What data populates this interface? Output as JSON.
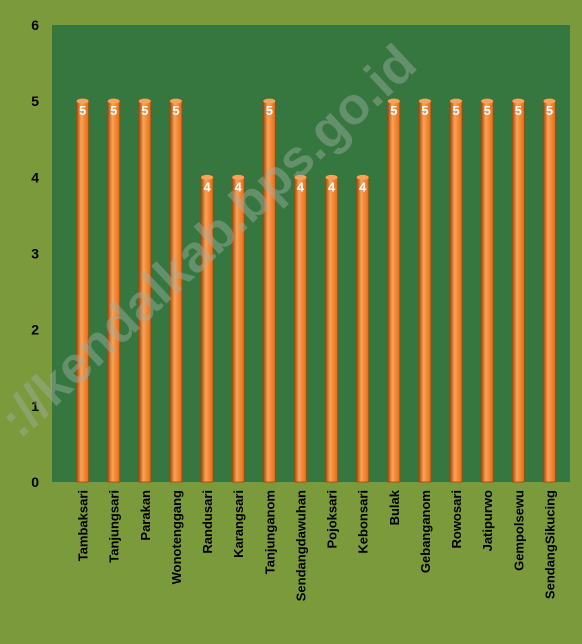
{
  "colors": {
    "page_background": "#7a9a3c",
    "plot_background": "#35773f",
    "axis_label": "#000000",
    "bar_fill": "#e66a12",
    "bar_highlight": "#f9a35a",
    "bar_shadow": "#a84807",
    "data_label": "#ffffff",
    "watermark": "#9fb0a5"
  },
  "watermark": {
    "text": "://kendalkab.bps.go.id"
  },
  "chart_data": {
    "type": "bar",
    "categories": [
      "Tambaksari",
      "Tanjungsari",
      "Parakan",
      "Wonotenggang",
      "Randusari",
      "Karangsari",
      "Tanjunganom",
      "Sendangdawuhan",
      "Pojoksari",
      "Kebonsari",
      "Bulak",
      "Gebanganom",
      "Rowosari",
      "Jatipurwo",
      "Gempolsewu",
      "SendangSikucing"
    ],
    "values": [
      5,
      5,
      5,
      5,
      4,
      4,
      5,
      4,
      4,
      4,
      5,
      5,
      5,
      5,
      5,
      5
    ],
    "data_labels": [
      "5",
      "5",
      "5",
      "5",
      "4",
      "4",
      "5",
      "4",
      "4",
      "4",
      "5",
      "5",
      "5",
      "5",
      "5",
      "5"
    ],
    "y_ticks": [
      0,
      1,
      2,
      3,
      4,
      5,
      6
    ],
    "ylim": [
      0,
      6
    ],
    "grid": false,
    "legend": "none"
  }
}
